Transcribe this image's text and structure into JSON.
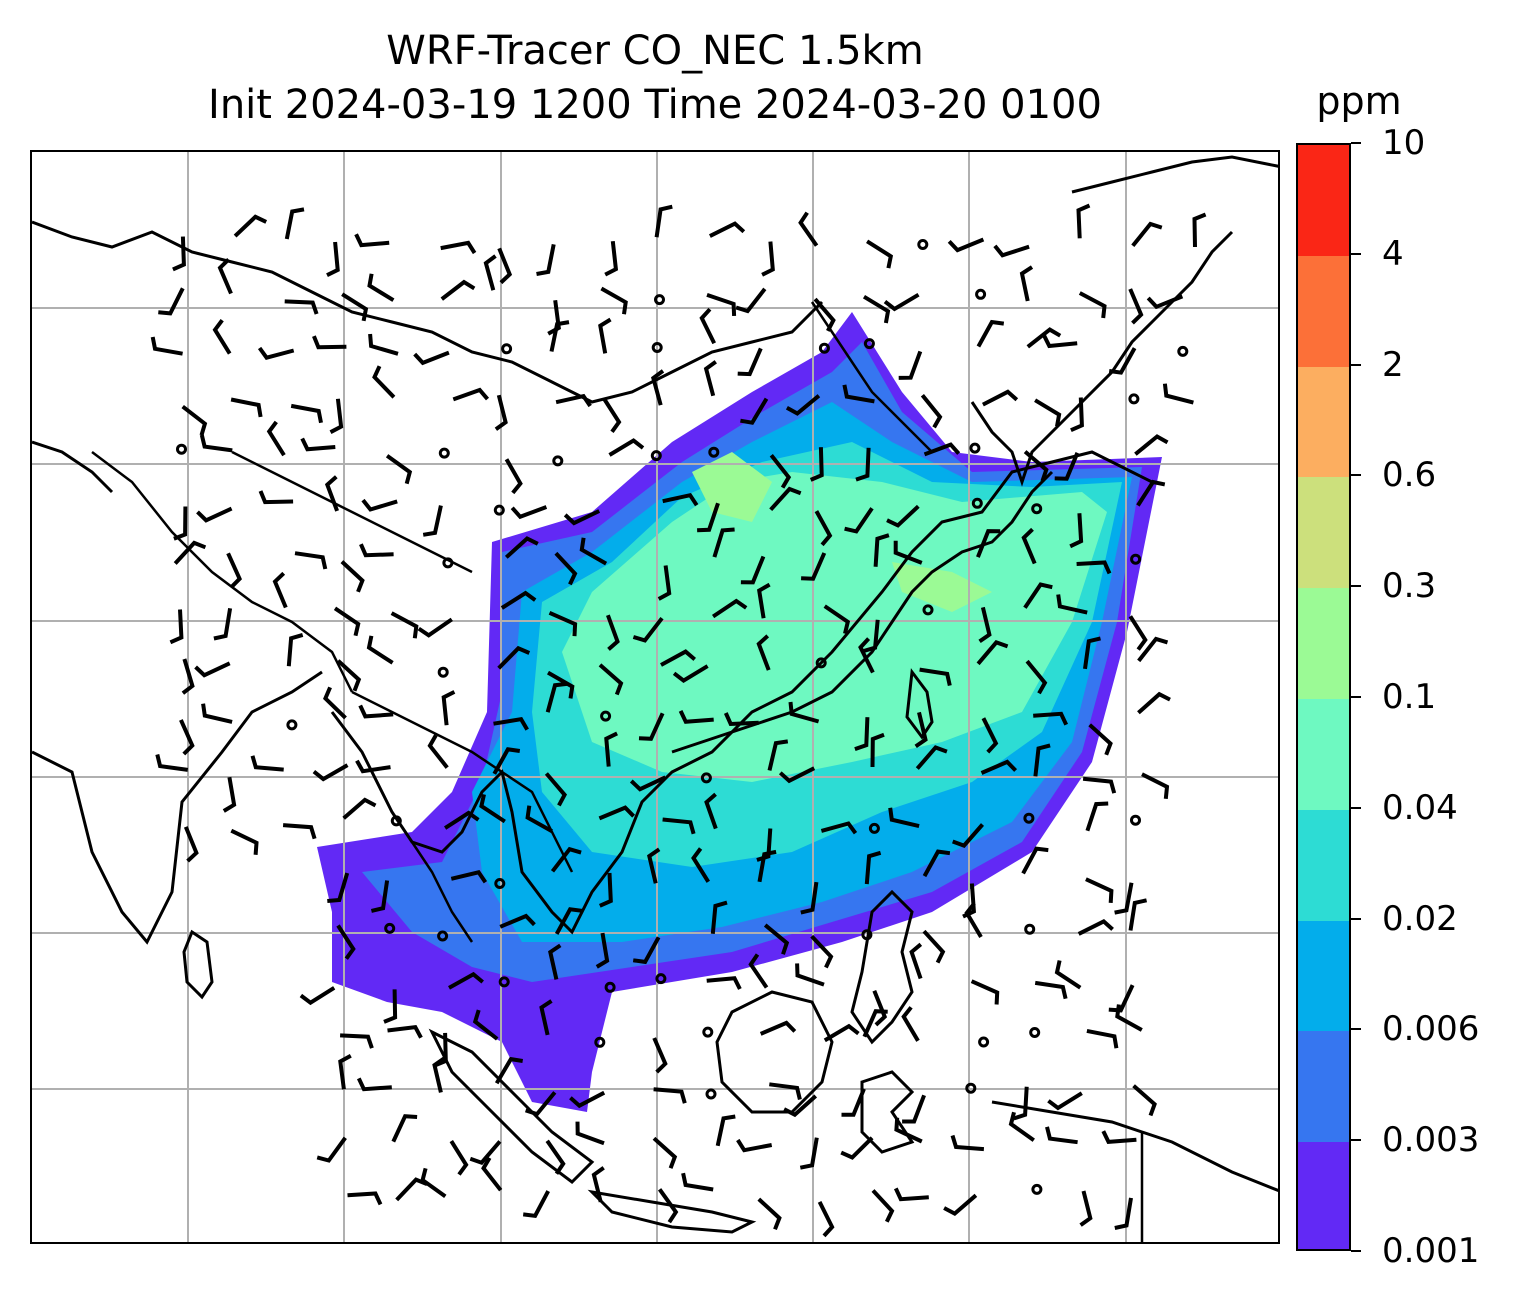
{
  "title": {
    "line1": "WRF-Tracer CO_NEC 1.5km",
    "line2": "Init 2024-03-19 1200 Time 2024-03-20 0100"
  },
  "colorbar": {
    "unit": "ppm",
    "ticks": [
      "0.001",
      "0.003",
      "0.006",
      "0.02",
      "0.04",
      "0.1",
      "0.3",
      "0.6",
      "2",
      "4",
      "10"
    ],
    "colors": [
      "#6229f5",
      "#3676f0",
      "#03adeb",
      "#2ddcd4",
      "#6ef9c1",
      "#9bfa95",
      "#cce07c",
      "#fcae60",
      "#fc7038",
      "#fa2616"
    ]
  },
  "map": {
    "features": [
      "coastlines",
      "country-borders",
      "lat-lon-gridlines",
      "wind-barbs",
      "co-tracer-concentration"
    ],
    "gridlines": "on",
    "wind_barbs": "on"
  }
}
